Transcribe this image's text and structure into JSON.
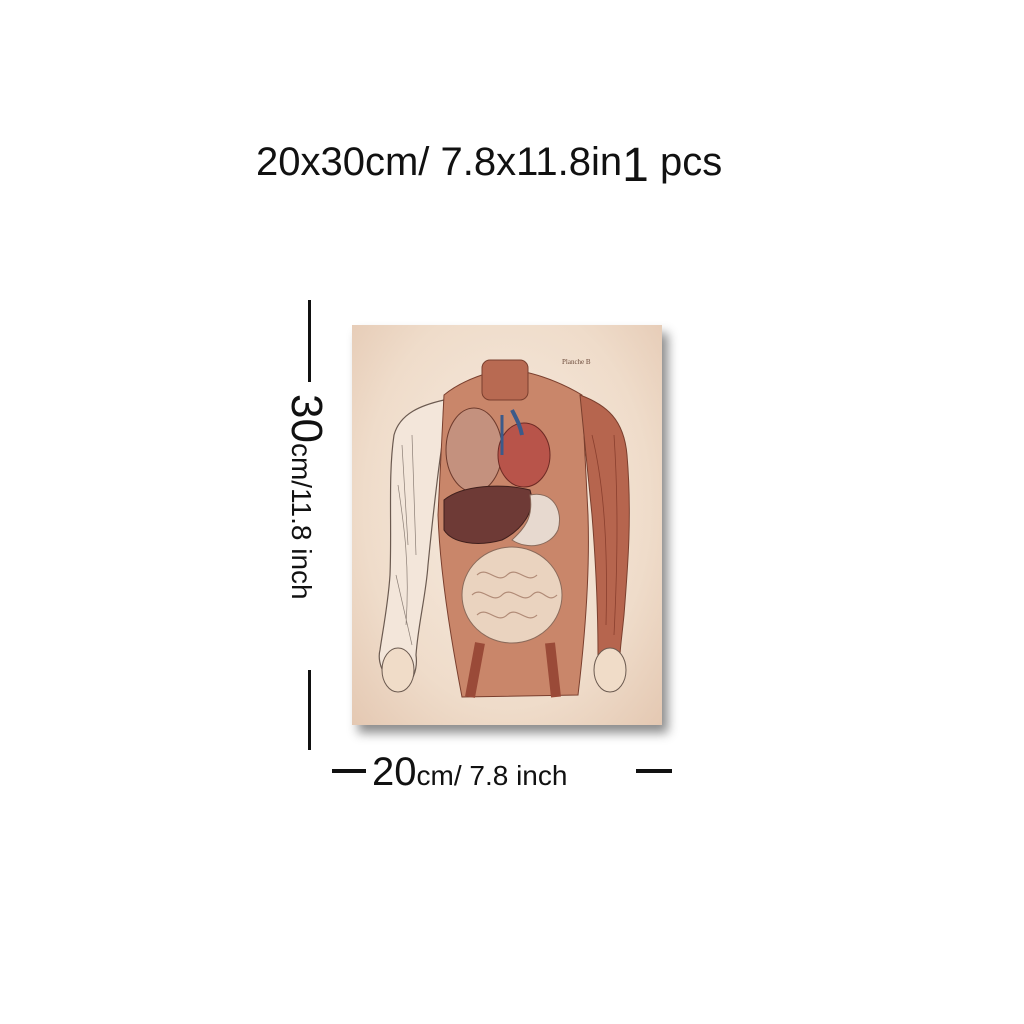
{
  "headline": {
    "size": "20x30cm/ 7.8x11.8in",
    "qty_number": "1",
    "qty_unit": "pcs"
  },
  "poster": {
    "plate_label": "Planche B",
    "background_color": "#efdcca"
  },
  "dimensions": {
    "height_number": "30",
    "height_unit": "cm/11.8 inch",
    "width_number": "20",
    "width_unit": "cm/ 7.8 inch"
  }
}
